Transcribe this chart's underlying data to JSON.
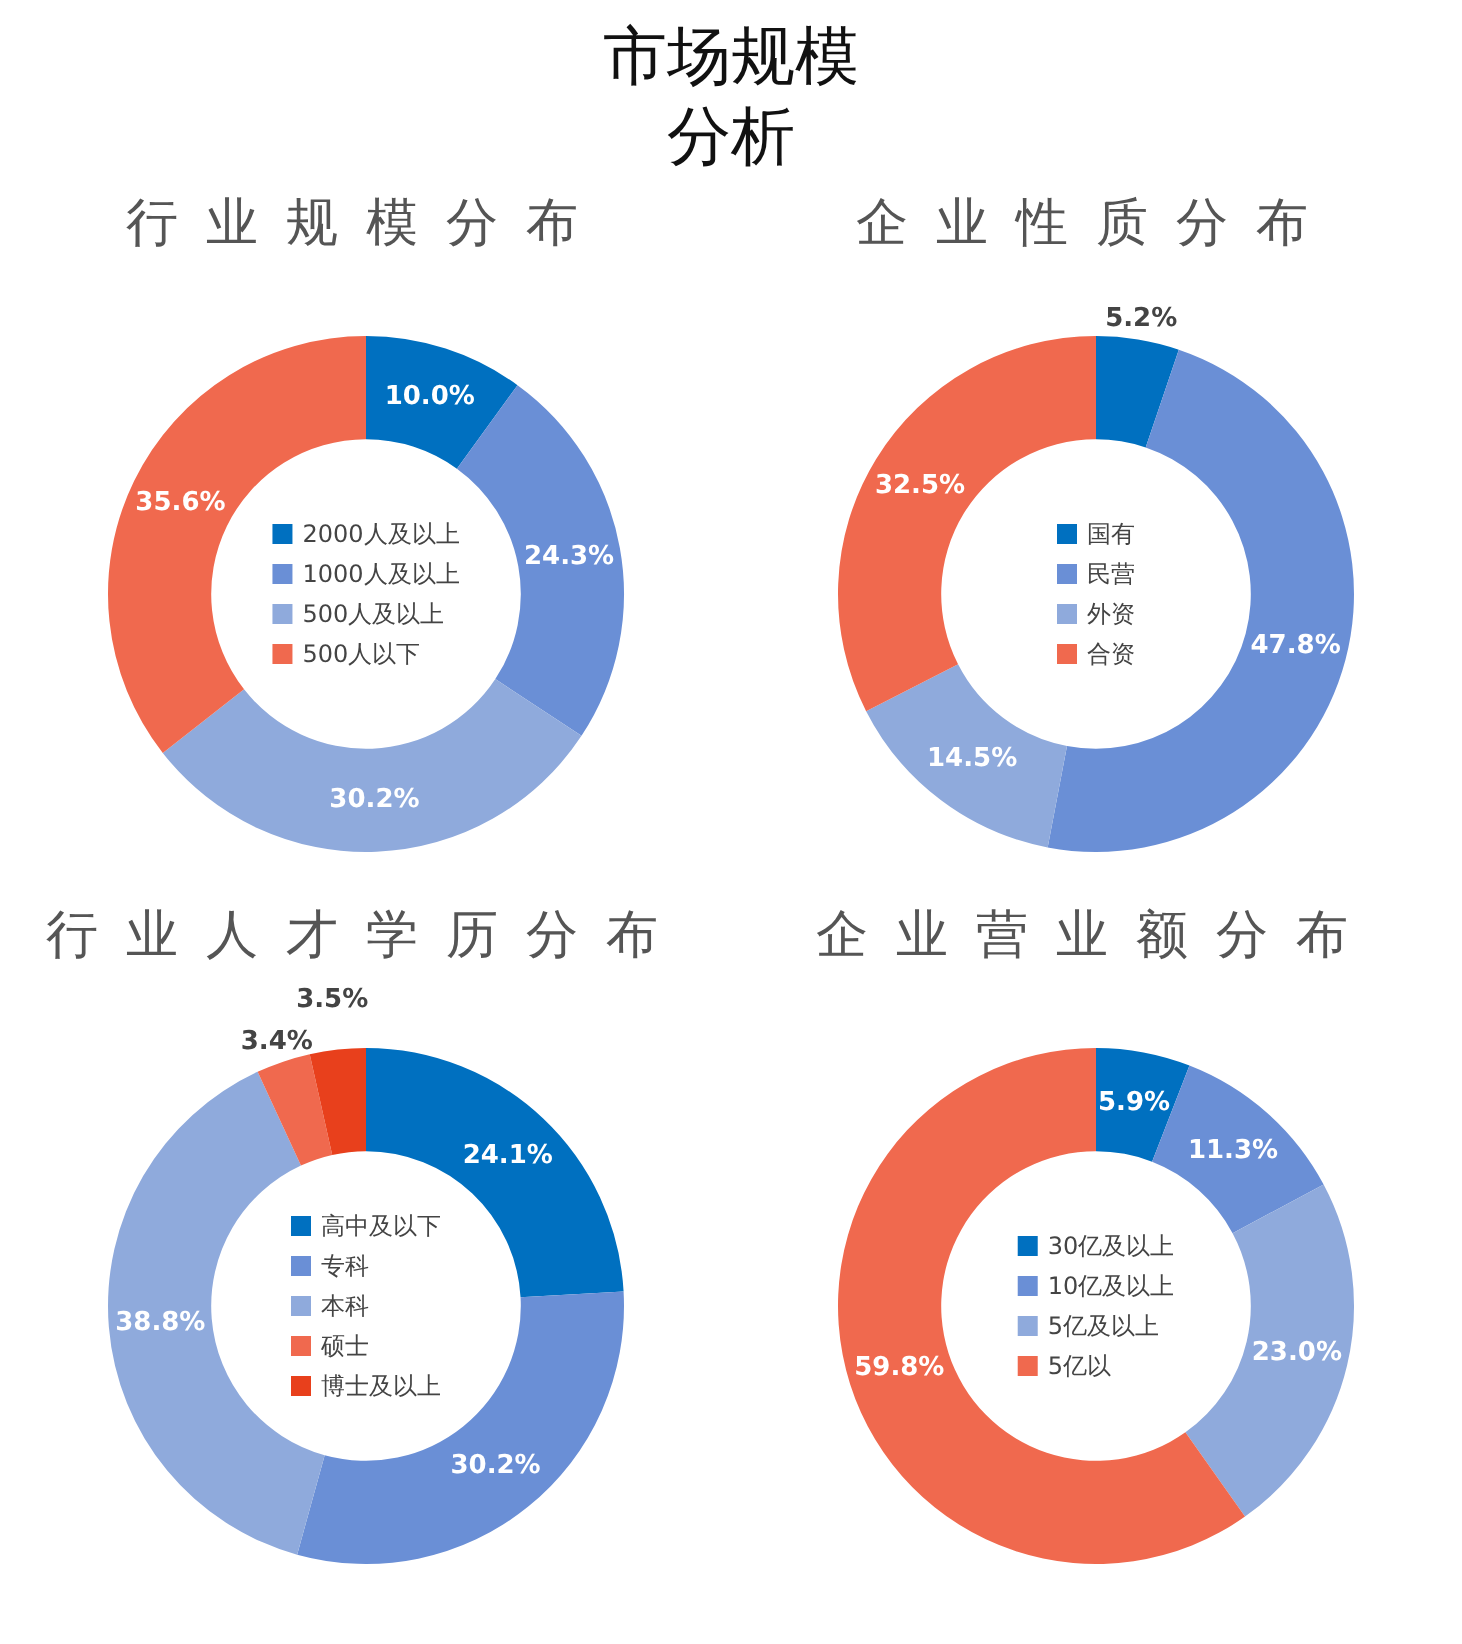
{
  "chart_data": [
    {
      "type": "donut",
      "title": "行业规模分布",
      "annotations": [
        "市场规模分析"
      ],
      "categories": [
        "2000人及以上",
        "1000人及以上",
        "500人及以上",
        "500人以下"
      ],
      "values": [
        10.0,
        24.3,
        30.2,
        35.6
      ],
      "value_labels": [
        "10.0%",
        "24.3%",
        "30.2%",
        "35.6%"
      ],
      "colors": [
        "#0070c0",
        "#6a8fd6",
        "#8faadc",
        "#f0694e"
      ],
      "legend": "center"
    },
    {
      "type": "donut",
      "title": "企业性质分布",
      "categories": [
        "国有",
        "民营",
        "外资",
        "合资"
      ],
      "values": [
        5.2,
        47.8,
        14.5,
        32.5
      ],
      "value_labels": [
        "5.2%",
        "47.8%",
        "14.5%",
        "32.5%"
      ],
      "colors": [
        "#0070c0",
        "#6a8fd6",
        "#8faadc",
        "#f0694e"
      ],
      "legend": "center"
    },
    {
      "type": "donut",
      "title": "行业人才学历分布",
      "categories": [
        "高中及以下",
        "专科",
        "本科",
        "硕士",
        "博士及以上"
      ],
      "values": [
        24.1,
        30.2,
        38.8,
        3.4,
        3.5
      ],
      "value_labels": [
        "24.1%",
        "30.2%",
        "38.8%",
        "3.4%",
        "3.5%"
      ],
      "colors": [
        "#0070c0",
        "#6a8fd6",
        "#8faadc",
        "#f0694e",
        "#e8401c"
      ],
      "legend": "center"
    },
    {
      "type": "donut",
      "title": "企业营业额分布",
      "categories": [
        "30亿及以上",
        "10亿及以上",
        "5亿及以上",
        "5亿以"
      ],
      "values": [
        5.9,
        11.3,
        23.0,
        59.8
      ],
      "value_labels": [
        "5.9%",
        "11.3%",
        "23.0%",
        "59.8%"
      ],
      "colors": [
        "#0070c0",
        "#6a8fd6",
        "#8faadc",
        "#f0694e"
      ],
      "legend": "center"
    }
  ]
}
